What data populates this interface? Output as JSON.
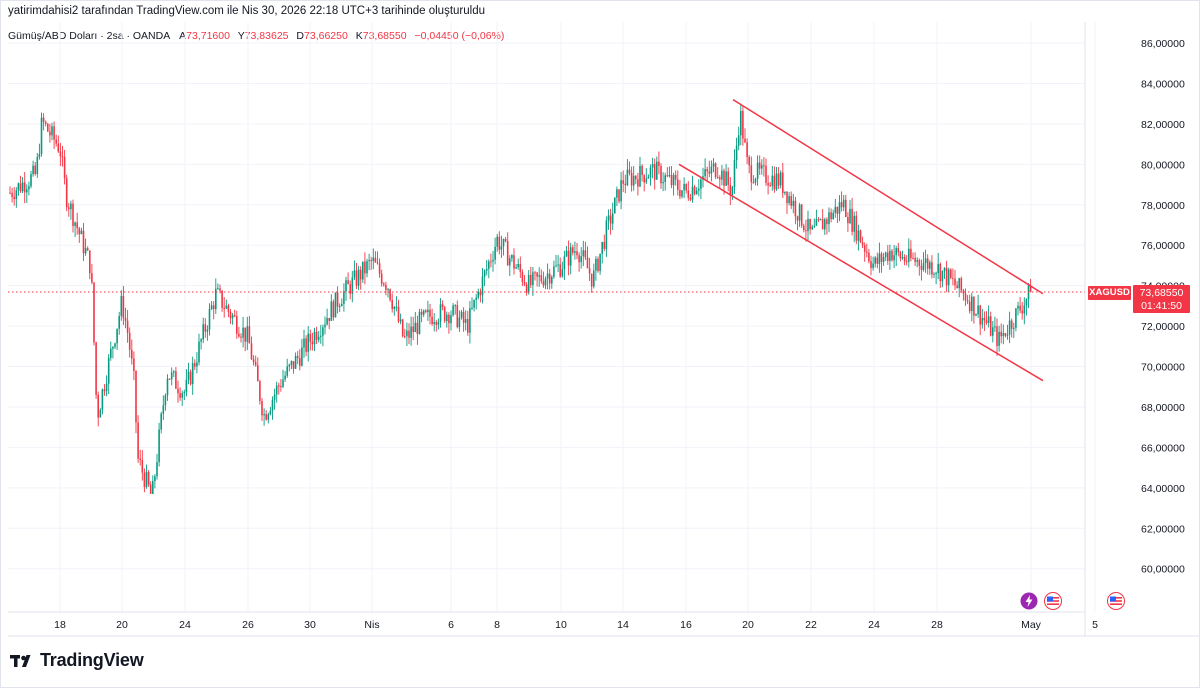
{
  "header": {
    "caption": "yatirimdahisi2 tarafından TradingView.com ile Nis 30, 2026 22:18 UTC+3 tarihinde oluşturuldu"
  },
  "legend": {
    "symbol_text": "Gümüş/ABD Doları · 2sa · OANDA",
    "open_label": "A",
    "open_value": "73,71600",
    "high_label": "Y",
    "high_value": "73,83625",
    "low_label": "D",
    "low_value": "73,66250",
    "close_label": "K",
    "close_value": "73,68550",
    "change_value": "−0,04450 (−0,06%)"
  },
  "price_badge": {
    "ticker": "XAGUSD",
    "price": "73,68550",
    "countdown": "01:41:50"
  },
  "brand": {
    "name": "TradingView"
  },
  "events": [
    {
      "icon": "flash-icon",
      "color": "#9c27b0"
    },
    {
      "icon": "us-flag-icon",
      "color": "#f23645"
    },
    {
      "icon": "us-flag-icon",
      "color": "#f23645"
    }
  ],
  "colors": {
    "up": "#089981",
    "down": "#f23645",
    "channel": "#f23645",
    "axis_text": "#131722",
    "grid": "#f0f3fa"
  },
  "chart_data": {
    "type": "candlestick",
    "title": "Gümüş/ABD Doları · 2sa · OANDA",
    "x_ticks": [
      "18",
      "20",
      "24",
      "26",
      "30",
      "Nis",
      "6",
      "8",
      "10",
      "14",
      "16",
      "20",
      "22",
      "24",
      "28",
      "May",
      "5"
    ],
    "y_ticks": [
      "86,00000",
      "84,00000",
      "82,00000",
      "80,00000",
      "78,00000",
      "76,00000",
      "74,00000",
      "72,00000",
      "70,00000",
      "68,00000",
      "66,00000",
      "64,00000",
      "62,00000",
      "60,00000"
    ],
    "ylim": [
      58.4,
      86.8
    ],
    "last_price": 73.6855,
    "anchors": [
      [
        "17 Mar",
        79.5
      ],
      [
        "17 Mar",
        82.1
      ],
      [
        "18 Mar",
        80.8
      ],
      [
        "18 Mar",
        78.5
      ],
      [
        "19 Mar",
        74.9
      ],
      [
        "19 Mar",
        67.5
      ],
      [
        "20 Mar",
        73.2
      ],
      [
        "20 Mar",
        71.6
      ],
      [
        "20 Mar",
        69.2
      ],
      [
        "21 Mar",
        65.4
      ],
      [
        "22 Mar",
        63.5
      ],
      [
        "23 Mar",
        69.7
      ],
      [
        "24 Mar",
        68.7
      ],
      [
        "25 Mar",
        73.6
      ],
      [
        "26 Mar",
        71.4
      ],
      [
        "27 Mar",
        67.6
      ],
      [
        "28 Mar",
        69.2
      ],
      [
        "29 Mar",
        70.3
      ],
      [
        "30 Mar",
        71.3
      ],
      [
        "31 Mar",
        73.5
      ],
      [
        "1 Apr",
        75.2
      ],
      [
        "2 Apr",
        74.0
      ],
      [
        "3 Apr",
        71.3
      ],
      [
        "4 Apr",
        72.2
      ],
      [
        "5 Apr",
        72.6
      ],
      [
        "6 Apr",
        72.7
      ],
      [
        "7 Apr",
        72.0
      ],
      [
        "8 Apr",
        76.3
      ],
      [
        "9 Apr",
        74.0
      ],
      [
        "10 Apr",
        75.0
      ],
      [
        "11 Apr",
        75.9
      ],
      [
        "12 Apr",
        74.3
      ],
      [
        "13 Apr",
        76.8
      ],
      [
        "14 Apr",
        79.2
      ],
      [
        "15 Apr",
        79.7
      ],
      [
        "16 Apr",
        78.6
      ],
      [
        "17 Apr",
        79.9
      ],
      [
        "18 Apr",
        78.7
      ],
      [
        "19 Apr",
        82.6
      ],
      [
        "20 Apr",
        79.7
      ],
      [
        "21 Apr",
        79.2
      ],
      [
        "22 Apr",
        76.5
      ],
      [
        "23 Apr",
        78.1
      ],
      [
        "24 Apr",
        75.0
      ],
      [
        "25 Apr",
        75.7
      ],
      [
        "26 Apr",
        75.3
      ],
      [
        "27 Apr",
        75.2
      ],
      [
        "28 Apr",
        74.9
      ],
      [
        "29 Apr",
        73.4
      ],
      [
        "30 Apr",
        71.3
      ],
      [
        "1 May",
        73.7
      ]
    ],
    "channel_lines": [
      {
        "from": [
          "19 Apr",
          83.2
        ],
        "to": [
          "1 May",
          73.6
        ]
      },
      {
        "from": [
          "16 Apr",
          80.0
        ],
        "to": [
          "1 May",
          69.3
        ]
      }
    ]
  }
}
